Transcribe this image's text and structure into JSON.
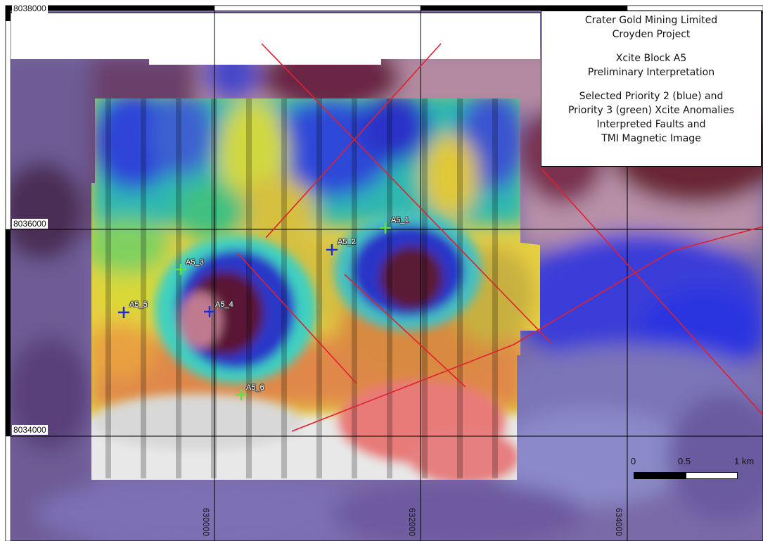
{
  "legend": {
    "company": "Crater Gold Mining Limited",
    "project": "Croyden Project",
    "block": "Xcite Block A5",
    "interpretation": "Preliminary Interpretation",
    "line1": "Selected Priority 2 (blue) and",
    "line2": "Priority 3 (green) Xcite Anomalies",
    "line3": "Interpreted Faults and",
    "line4": "TMI Magnetic Image"
  },
  "northing_labels": [
    "8038000",
    "8036000",
    "8034000"
  ],
  "easting_labels": [
    "630000",
    "632000",
    "634000"
  ],
  "anomalies": [
    {
      "id": "A5_1",
      "priority": 3,
      "color": "#66dd44"
    },
    {
      "id": "A5_2",
      "priority": 2,
      "color": "#1a2fd8"
    },
    {
      "id": "A5_3",
      "priority": 3,
      "color": "#66dd44"
    },
    {
      "id": "A5_4",
      "priority": 2,
      "color": "#1a2fd8"
    },
    {
      "id": "A5_5",
      "priority": 2,
      "color": "#1a2fd8"
    },
    {
      "id": "A5_6",
      "priority": 3,
      "color": "#66dd44"
    }
  ],
  "scale_bar": {
    "labels": [
      "0",
      "0.5",
      "1 km"
    ]
  },
  "colors": {
    "fault": "#e0202f",
    "priority2": "#1a2fd8",
    "priority3": "#66dd44",
    "grid": "#000000"
  }
}
